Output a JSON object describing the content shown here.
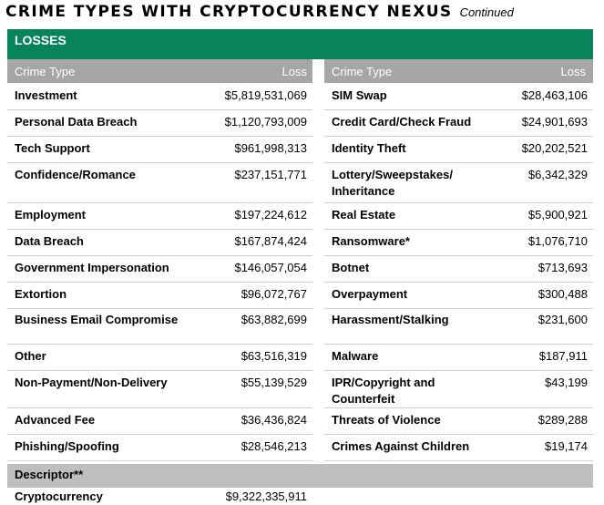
{
  "title": {
    "main": "CRIME TYPES WITH CRYPTOCURRENCY NEXUS",
    "continued": "Continued"
  },
  "section": "LOSSES",
  "columns": {
    "crime_type": "Crime Type",
    "loss": "Loss"
  },
  "colors": {
    "section_bar": "#07845c",
    "header_bar": "#a6a6a6",
    "descriptor_bar": "#bfbfbf"
  },
  "left_rows": [
    {
      "name": "Investment",
      "loss": "$5,819,531,069"
    },
    {
      "name": "Personal Data Breach",
      "loss": "$1,120,793,009"
    },
    {
      "name": "Tech Support",
      "loss": "$961,998,313"
    },
    {
      "name": "Confidence/Romance",
      "loss": "$237,151,771"
    },
    {
      "name": "Employment",
      "loss": "$197,224,612"
    },
    {
      "name": "Data Breach",
      "loss": "$167,874,424"
    },
    {
      "name": "Government Impersonation",
      "loss": "$146,057,054"
    },
    {
      "name": "Extortion",
      "loss": "$96,072,767"
    },
    {
      "name": "Business Email Compromise",
      "loss": "$63,882,699"
    },
    {
      "name": "Other",
      "loss": "$63,516,319"
    },
    {
      "name": "Non-Payment/Non-Delivery",
      "loss": "$55,139,529"
    },
    {
      "name": "Advanced Fee",
      "loss": "$36,436,824"
    },
    {
      "name": "Phishing/Spoofing",
      "loss": "$28,546,213"
    }
  ],
  "right_rows": [
    {
      "name": "SIM Swap",
      "loss": "$28,463,106"
    },
    {
      "name": "Credit Card/Check Fraud",
      "loss": "$24,901,693"
    },
    {
      "name": "Identity Theft",
      "loss": "$20,202,521"
    },
    {
      "name": "Lottery/Sweepstakes/\nInheritance",
      "loss": "$6,342,329"
    },
    {
      "name": "Real Estate",
      "loss": "$5,900,921"
    },
    {
      "name": "Ransomware*",
      "loss": "$1,076,710"
    },
    {
      "name": "Botnet",
      "loss": "$713,693"
    },
    {
      "name": "Overpayment",
      "loss": "$300,488"
    },
    {
      "name": "Harassment/Stalking",
      "loss": "$231,600"
    },
    {
      "name": "Malware",
      "loss": "$187,911"
    },
    {
      "name": "IPR/Copyright and\nCounterfeit",
      "loss": "$43,199"
    },
    {
      "name": "Threats of Violence",
      "loss": "$289,288"
    },
    {
      "name": "Crimes Against Children",
      "loss": "$19,174"
    }
  ],
  "descriptor": {
    "label": "Descriptor**",
    "rows": [
      {
        "name": "Cryptocurrency",
        "loss": "$9,322,335,911"
      }
    ]
  }
}
